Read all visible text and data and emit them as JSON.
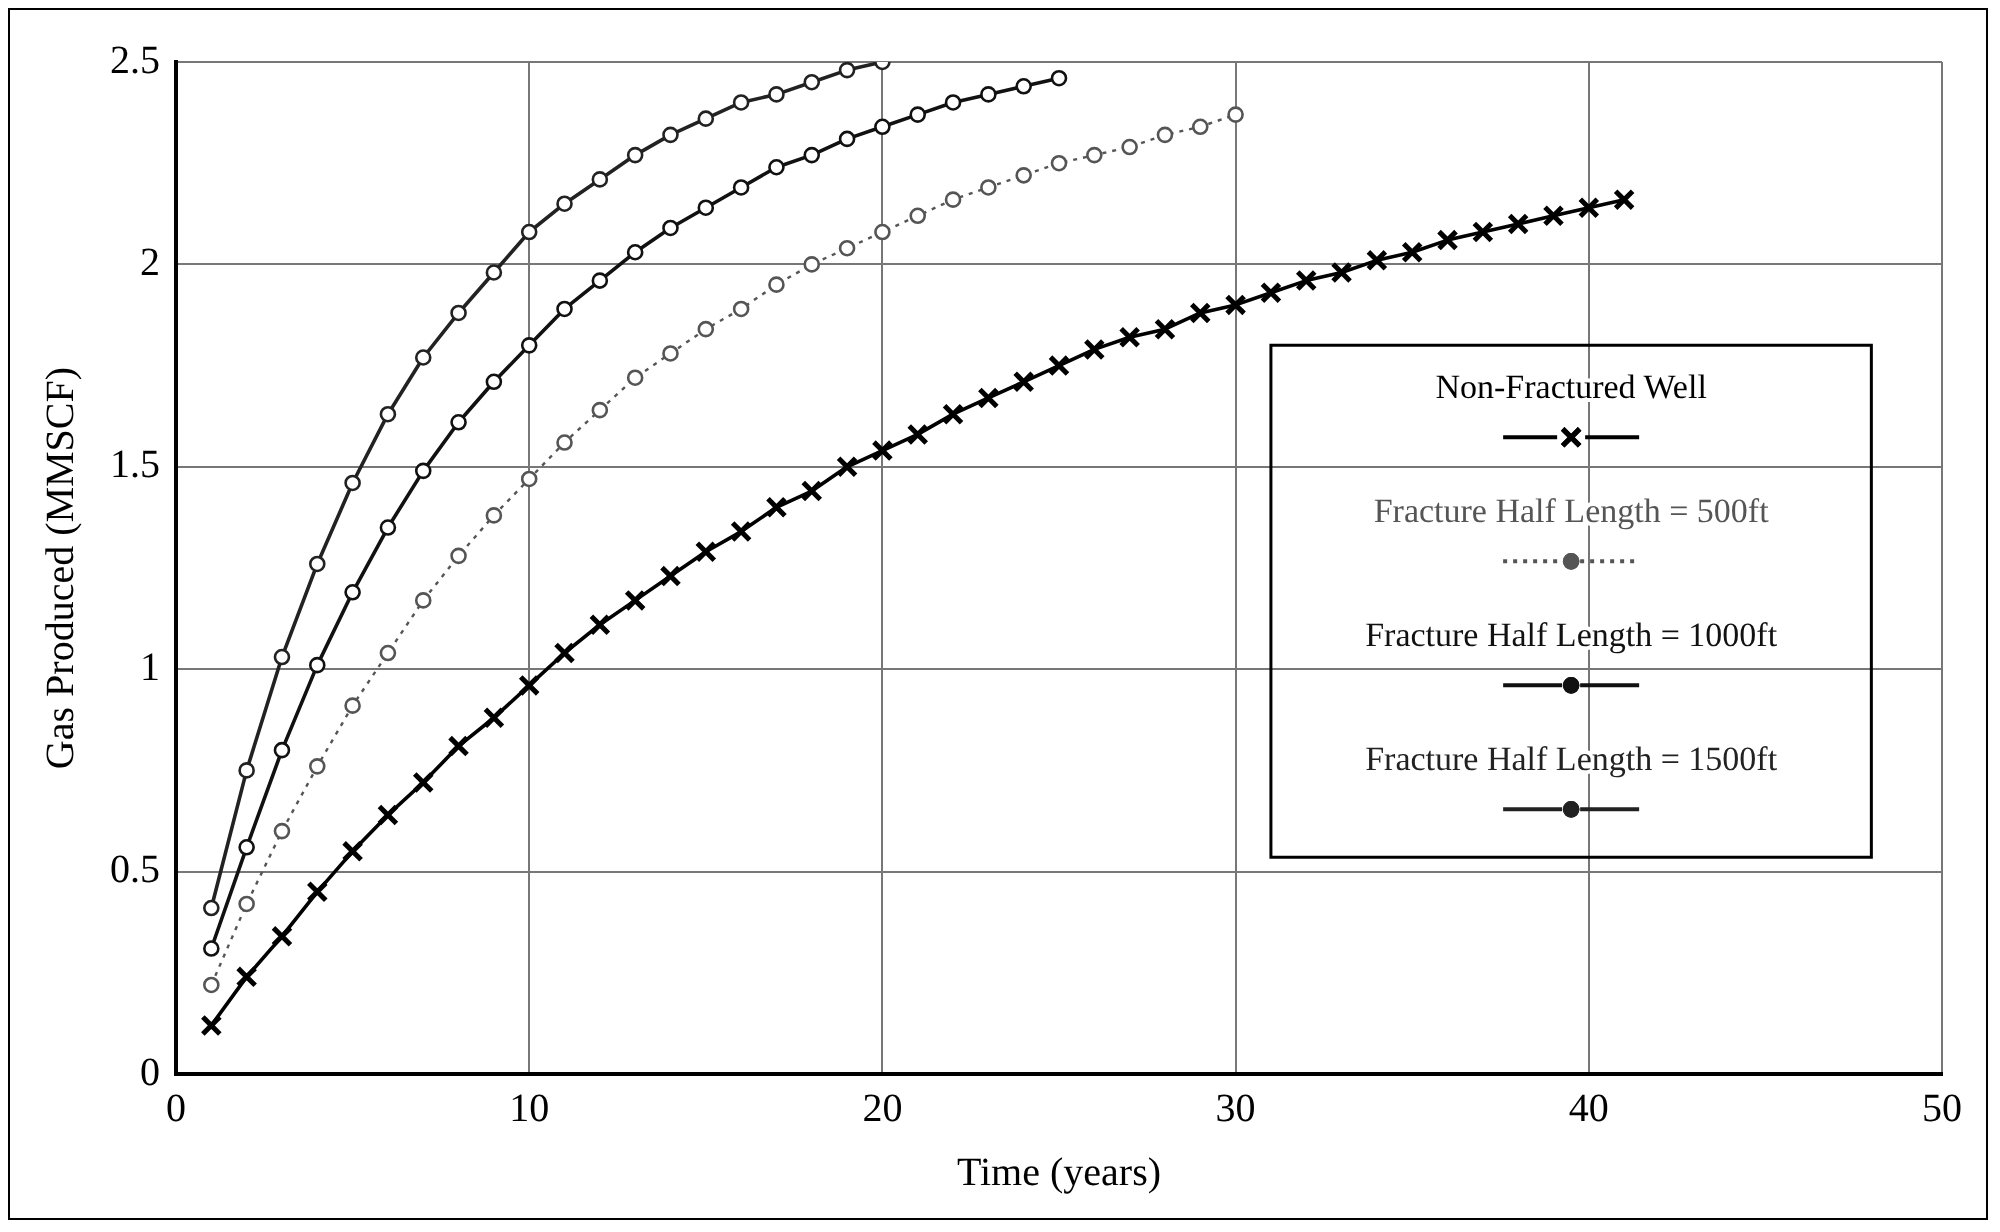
{
  "chart_data": {
    "type": "line",
    "xlabel": "Time (years)",
    "ylabel": "Gas Produced (MMSCF)",
    "xlim": [
      0,
      50
    ],
    "xticks": [
      0,
      10,
      20,
      30,
      40,
      50
    ],
    "ylim": [
      0,
      2.5
    ],
    "yticks": [
      0,
      0.5,
      1,
      1.5,
      2,
      2.5
    ],
    "grid": true,
    "legend": "right",
    "series": [
      {
        "name": "Non-Fractured Well",
        "color": "#000000",
        "marker": "cross",
        "line_style": "solid",
        "x": [
          1,
          2,
          3,
          4,
          5,
          6,
          7,
          8,
          9,
          10,
          11,
          12,
          13,
          14,
          15,
          16,
          17,
          18,
          19,
          20,
          21,
          22,
          23,
          24,
          25,
          26,
          27,
          28,
          29,
          30,
          31,
          32,
          33,
          34,
          35,
          36,
          37,
          38,
          39,
          40,
          41
        ],
        "values": [
          0.12,
          0.24,
          0.34,
          0.45,
          0.55,
          0.64,
          0.72,
          0.81,
          0.88,
          0.96,
          1.04,
          1.11,
          1.17,
          1.23,
          1.29,
          1.34,
          1.4,
          1.44,
          1.5,
          1.54,
          1.58,
          1.63,
          1.67,
          1.71,
          1.75,
          1.79,
          1.82,
          1.84,
          1.88,
          1.9,
          1.93,
          1.96,
          1.98,
          2.01,
          2.03,
          2.06,
          2.08,
          2.1,
          2.12,
          2.14,
          2.16
        ]
      },
      {
        "name": "Fracture Half Length = 500ft",
        "color": "#555555",
        "marker": "circle",
        "line_style": "dotted",
        "x": [
          1,
          2,
          3,
          4,
          5,
          6,
          7,
          8,
          9,
          10,
          11,
          12,
          13,
          14,
          15,
          16,
          17,
          18,
          19,
          20,
          21,
          22,
          23,
          24,
          25,
          26,
          27,
          28,
          29,
          30
        ],
        "values": [
          0.22,
          0.42,
          0.6,
          0.76,
          0.91,
          1.04,
          1.17,
          1.28,
          1.38,
          1.47,
          1.56,
          1.64,
          1.72,
          1.78,
          1.84,
          1.89,
          1.95,
          2,
          2.04,
          2.08,
          2.12,
          2.16,
          2.19,
          2.22,
          2.25,
          2.27,
          2.29,
          2.32,
          2.34,
          2.37
        ]
      },
      {
        "name": "Fracture Half Length = 1000ft",
        "color": "#111111",
        "marker": "circle",
        "line_style": "solid",
        "x": [
          1,
          2,
          3,
          4,
          5,
          6,
          7,
          8,
          9,
          10,
          11,
          12,
          13,
          14,
          15,
          16,
          17,
          18,
          19,
          20,
          21,
          22,
          23,
          24,
          25
        ],
        "values": [
          0.31,
          0.56,
          0.8,
          1.01,
          1.19,
          1.35,
          1.49,
          1.61,
          1.71,
          1.8,
          1.89,
          1.96,
          2.03,
          2.09,
          2.14,
          2.19,
          2.24,
          2.27,
          2.31,
          2.34,
          2.37,
          2.4,
          2.42,
          2.44,
          2.46
        ]
      },
      {
        "name": "Fracture Half Length = 1500ft",
        "color": "#222222",
        "marker": "circle",
        "line_style": "solid",
        "x": [
          1,
          2,
          3,
          4,
          5,
          6,
          7,
          8,
          9,
          10,
          11,
          12,
          13,
          14,
          15,
          16,
          17,
          18,
          19,
          20
        ],
        "values": [
          0.41,
          0.75,
          1.03,
          1.26,
          1.46,
          1.63,
          1.77,
          1.88,
          1.98,
          2.08,
          2.15,
          2.21,
          2.27,
          2.32,
          2.36,
          2.4,
          2.42,
          2.45,
          2.48,
          2.5
        ]
      }
    ]
  }
}
